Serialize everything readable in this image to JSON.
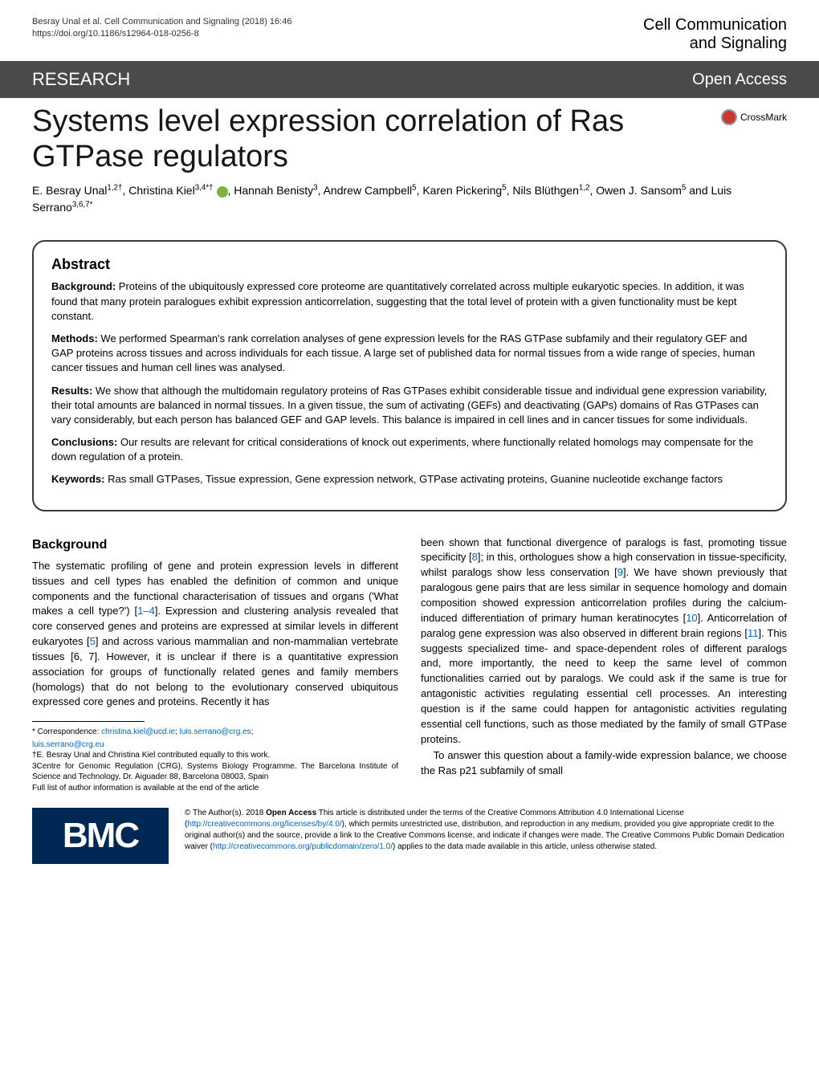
{
  "header": {
    "citation_line1": "Besray Unal et al. Cell Communication and Signaling  (2018) 16:46",
    "citation_line2": "https://doi.org/10.1186/s12964-018-0256-8",
    "journal_top": "Cell Communication",
    "journal_bottom": "and Signaling"
  },
  "research_bar": {
    "label": "RESEARCH",
    "open_access": "Open Access"
  },
  "crossmark": {
    "label": "CrossMark"
  },
  "article": {
    "title": "Systems level expression correlation of Ras GTPase regulators",
    "authors_html": "E. Besray Unal<sup>1,2†</sup>, Christina Kiel<sup>3,4*†</sup> <span class='orcid' data-name='orcid-icon' data-interactable='false'></span>, Hannah Benisty<sup>3</sup>, Andrew Campbell<sup>5</sup>, Karen Pickering<sup>5</sup>, Nils Blüthgen<sup>1,2</sup>, Owen J. Sansom<sup>5</sup> and Luis Serrano<sup>3,6,7*</sup>"
  },
  "abstract": {
    "heading": "Abstract",
    "background_label": "Background:",
    "background": "Proteins of the ubiquitously expressed core proteome are quantitatively correlated across multiple eukaryotic species. In addition, it was found that many protein paralogues exhibit expression anticorrelation, suggesting that the total level of protein with a given functionality must be kept constant.",
    "methods_label": "Methods:",
    "methods": "We performed Spearman's rank correlation analyses of gene expression levels for the RAS GTPase subfamily and their regulatory GEF and GAP proteins across tissues and across individuals for each tissue. A large set of published data for normal tissues from a wide range of species, human cancer tissues and human cell lines was analysed.",
    "results_label": "Results:",
    "results": "We show that although the multidomain regulatory proteins of Ras GTPases exhibit considerable tissue and individual gene expression variability, their total amounts are balanced in normal tissues. In a given tissue, the sum of activating (GEFs) and deactivating (GAPs) domains of Ras GTPases can vary considerably, but each person has balanced GEF and GAP levels. This balance is impaired in cell lines and in cancer tissues for some individuals.",
    "conclusions_label": "Conclusions:",
    "conclusions": "Our results are relevant for critical considerations of knock out experiments, where functionally related homologs may compensate for the down regulation of a protein.",
    "keywords_label": "Keywords:",
    "keywords": "Ras small GTPases, Tissue expression, Gene expression network, GTPase activating proteins, Guanine nucleotide exchange factors"
  },
  "body": {
    "background_heading": "Background",
    "col1_p1": "The systematic profiling of gene and protein expression levels in different tissues and cell types has enabled the definition of common and unique components and the functional characterisation of tissues and organs ('What makes a cell type?') [1–4]. Expression and clustering analysis revealed that core conserved genes and proteins are expressed at similar levels in different eukaryotes [5] and across various mammalian and non-mammalian vertebrate tissues [6, 7]. However, it is unclear if there is a quantitative expression association for groups of functionally related genes and family members (homologs) that do not belong to the evolutionary conserved ubiquitous expressed core genes and proteins. Recently it has",
    "col2_p1": "been shown that functional divergence of paralogs is fast, promoting tissue specificity [8]; in this, orthologues show a high conservation in tissue-specificity, whilst paralogs show less conservation [9]. We have shown previously that paralogous gene pairs that are less similar in sequence homology and domain composition showed expression anticorrelation profiles during the calcium-induced differentiation of primary human keratinocytes [10]. Anticorrelation of paralog gene expression was also observed in different brain regions [11]. This suggests specialized time- and space-dependent roles of different paralogs and, more importantly, the need to keep the same level of common functionalities carried out by paralogs. We could ask if the same is true for antagonistic activities regulating essential cell processes. An interesting question is if the same could happen for antagonistic activities regulating essential cell functions, such as those mediated by the family of small GTPase proteins.",
    "col2_p2": "To answer this question about a family-wide expression balance, we choose the Ras p21 subfamily of small"
  },
  "footer": {
    "correspondence_label": "* Correspondence:",
    "email1": "christina.kiel@ucd.ie",
    "email2": "luis.serrano@crg.es",
    "email3": "luis.serrano@crg.eu",
    "equal": "†E. Besray Unal and Christina Kiel contributed equally to this work.",
    "affil3": "3Centre for Genomic Regulation (CRG), Systems Biology Programme. The Barcelona Institute of Science and Technology, Dr. Aiguader 88, Barcelona 08003, Spain",
    "full_list": "Full list of author information is available at the end of the article"
  },
  "bmc": {
    "logo_text": "BMC",
    "license": "© The Author(s). 2018 Open Access This article is distributed under the terms of the Creative Commons Attribution 4.0 International License (http://creativecommons.org/licenses/by/4.0/), which permits unrestricted use, distribution, and reproduction in any medium, provided you give appropriate credit to the original author(s) and the source, provide a link to the Creative Commons license, and indicate if changes were made. The Creative Commons Public Domain Dedication waiver (http://creativecommons.org/publicdomain/zero/1.0/) applies to the data made available in this article, unless otherwise stated."
  },
  "colors": {
    "bar_bg": "#4b4a4a",
    "bmc_bg": "#002855",
    "link": "#0066cc",
    "crossmark": "#c73831",
    "orcid": "#7cb342"
  }
}
